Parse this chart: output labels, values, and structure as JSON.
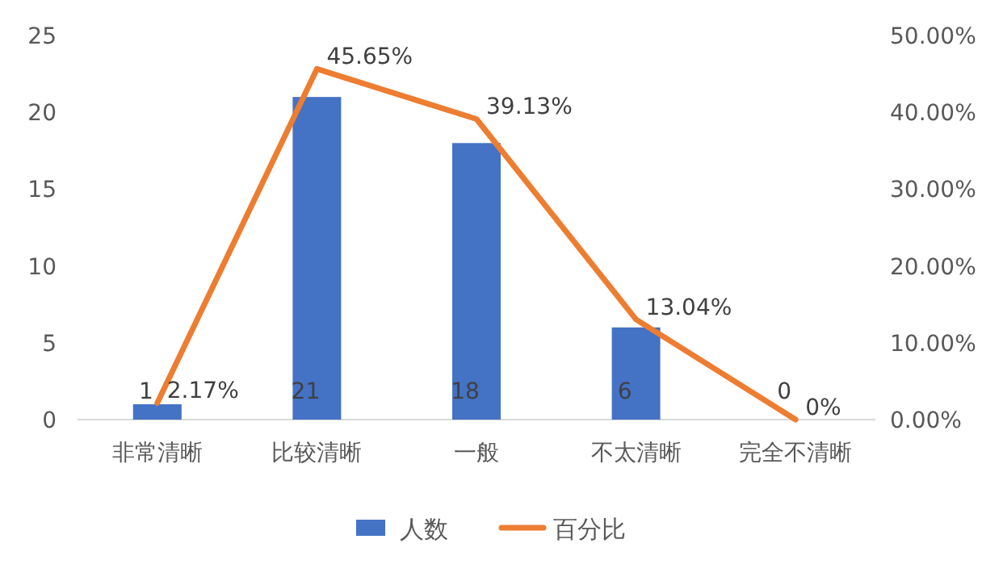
{
  "chart_data": {
    "type": "bar",
    "categories": [
      "非常清晰",
      "比较清晰",
      "一般",
      "不太清晰",
      "完全不清晰"
    ],
    "series": [
      {
        "name": "人数",
        "color": "#4472c4",
        "values": [
          1,
          21,
          18,
          6,
          0
        ],
        "value_labels": [
          "1",
          "21",
          "18",
          "6",
          "0"
        ]
      },
      {
        "name": "百分比",
        "type": "line",
        "axis": "y2",
        "color": "#ed7d31",
        "values": [
          2.17,
          45.65,
          39.13,
          13.04,
          0
        ],
        "value_labels": [
          "2.17%",
          "45.65%",
          "39.13%",
          "13.04%",
          "0%"
        ]
      }
    ],
    "ylim": [
      0,
      25
    ],
    "yticks": [
      0,
      5,
      10,
      15,
      20,
      25
    ],
    "y2lim": [
      0,
      50
    ],
    "y2ticks": [
      {
        "value": 0,
        "label": "0.00%"
      },
      {
        "value": 10,
        "label": "10.00%"
      },
      {
        "value": 20,
        "label": "20.00%"
      },
      {
        "value": 30,
        "label": "30.00%"
      },
      {
        "value": 40,
        "label": "40.00%"
      },
      {
        "value": 50,
        "label": "50.00%"
      }
    ],
    "legend": "bottom",
    "line_style": "solid",
    "marker": "none"
  }
}
